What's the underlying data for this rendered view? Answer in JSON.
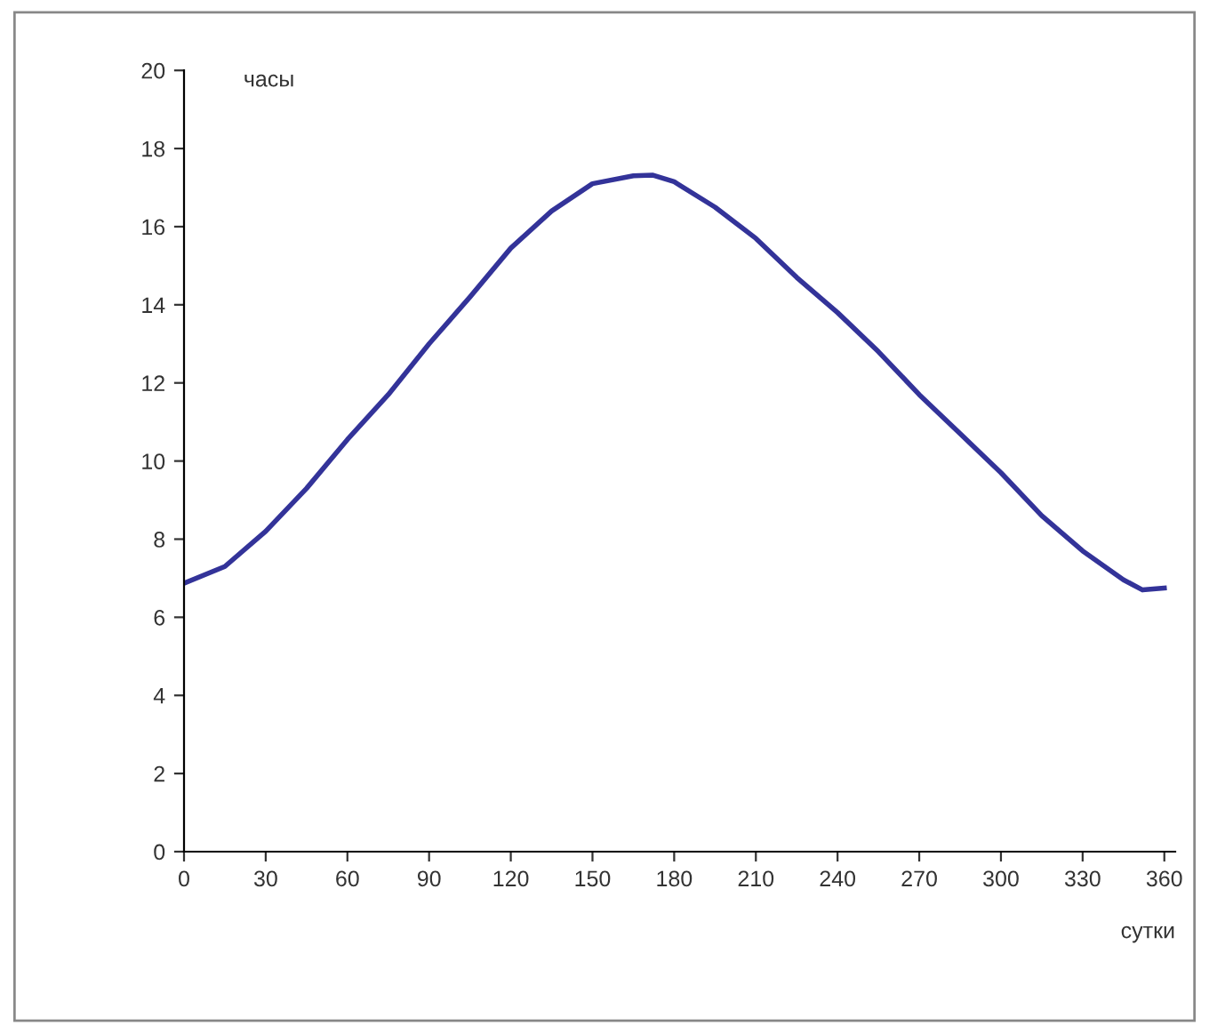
{
  "chart_data": {
    "type": "line",
    "xlabel": "сутки",
    "ylabel": "часы",
    "xlim": [
      0,
      364
    ],
    "ylim": [
      0,
      20
    ],
    "xticks": [
      0,
      30,
      60,
      90,
      120,
      150,
      180,
      210,
      240,
      270,
      300,
      330,
      360
    ],
    "yticks": [
      0,
      2,
      4,
      6,
      8,
      10,
      12,
      14,
      16,
      18,
      20
    ],
    "grid": false,
    "legend": false,
    "marker": "none",
    "line_style": "solid",
    "series": [
      {
        "color": "#333399",
        "x": [
          0,
          15,
          30,
          45,
          60,
          75,
          90,
          105,
          120,
          135,
          150,
          165,
          172,
          180,
          195,
          210,
          225,
          240,
          255,
          270,
          285,
          300,
          315,
          330,
          345,
          352,
          360
        ],
        "values": [
          6.87,
          7.3,
          8.2,
          9.3,
          10.55,
          11.7,
          13.0,
          14.2,
          15.45,
          16.4,
          17.1,
          17.3,
          17.32,
          17.15,
          16.5,
          15.7,
          14.7,
          13.8,
          12.8,
          11.7,
          10.7,
          9.7,
          8.6,
          7.7,
          6.96,
          6.7,
          6.75
        ]
      }
    ]
  }
}
